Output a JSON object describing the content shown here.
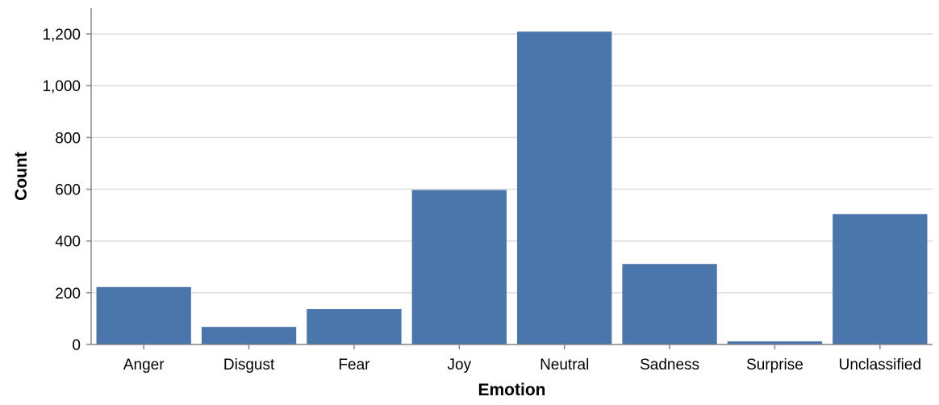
{
  "colors": {
    "bar": "#4a76ab",
    "grid": "#dddddd",
    "axis": "#888888",
    "text": "#000000"
  },
  "chart_data": {
    "type": "bar",
    "title": "",
    "xlabel": "Emotion",
    "ylabel": "Count",
    "categories": [
      "Anger",
      "Disgust",
      "Fear",
      "Joy",
      "Neutral",
      "Sadness",
      "Surprise",
      "Unclassified"
    ],
    "values": [
      222,
      68,
      137,
      597,
      1209,
      311,
      12,
      504
    ],
    "ylim": [
      0,
      1300
    ],
    "yticks": [
      0,
      200,
      400,
      600,
      800,
      1000,
      1200
    ],
    "ytick_labels": [
      "0",
      "200",
      "400",
      "600",
      "800",
      "1,000",
      "1,200"
    ],
    "grid": true,
    "legend": "none"
  }
}
